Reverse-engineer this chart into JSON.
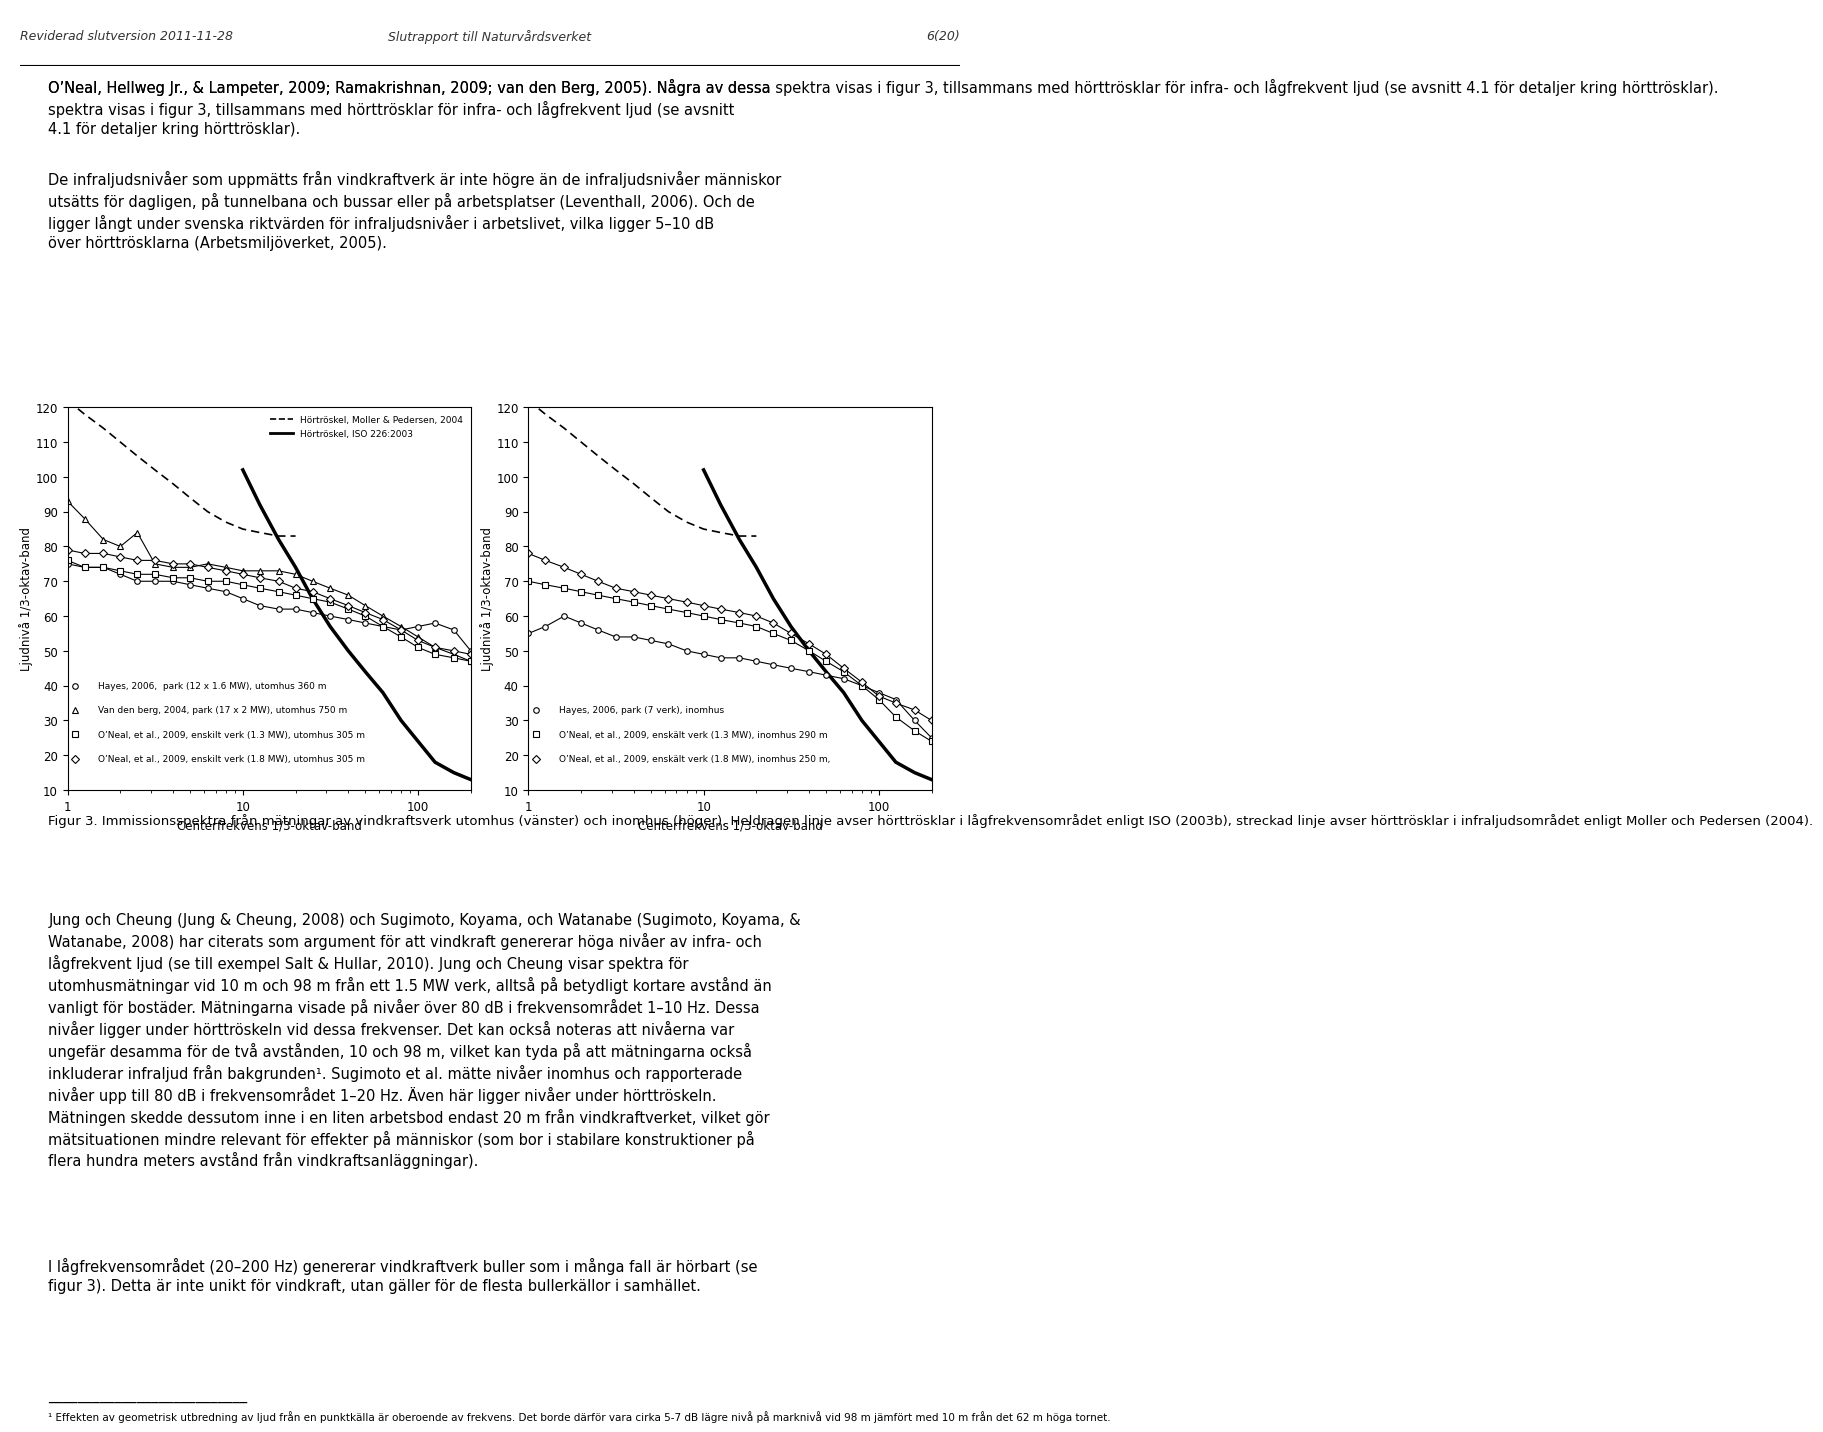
{
  "page_header_left": "Reviderad slutversion 2011-11-28",
  "page_header_center": "Slutrapport till Naturvårdsverket",
  "page_header_right": "6(20)",
  "para1": "O’Neal, Hellweg Jr., & Lampeter, 2009; Ramakrishnan, 2009; van den Berg, 2005). Några av dessa spektra visas i figur 3, tillsammans med hörttrösklar för infra- och lågfrekvent ljud (se avsnitt 4.1 för detaljer kring hörttrösklar).",
  "para2_bold": "De infraljudsnivåer som uppmätts från vindkraftverk är inte högre än de infraljudsnivåer människor utsätts för dagligen, på tunnelbana och bussar eller på arbetsplatser (Leventhall, 2006).",
  "para2_normal": "Och de ligger långt under svenska riktvärden för infraljudsnivåer i arbetslivet, vilka ligger 5–10 dB över hörttrösklarna (Arbetsmiljöverket, 2005).",
  "fig_caption": "Figur 3. Immissionsspektra från mätningar av vindkraftsverk utomhus (vänster) och inomhus (höger). Heldragen linje avser hörttrösklar i lågfrekvensområdet enligt ISO (2003b), streckad linje avser hörttrösklar i infraljudsområdet enligt Moller och Pedersen (2004).",
  "para3": "Jung och Cheung (Jung & Cheung, 2008) och Sugimoto, Koyama, och Watanabe (Sugimoto, Koyama, & Watanabe, 2008) har citerats som argument för att vindkraft genererar höga nivåer av infra- och lågfrekvent ljud (se till exempel Salt & Hullar, 2010). Jung och Cheung visar spektra för utomhusmätningar vid 10 m och 98 m från ett 1.5 MW verk, alltså på betydligt kortare avstånd än vanligt för bostäder. Mätningarna visade på nivåer över 80 dB i frekvensområdet 1–10 Hz. Dessa nivåer ligger under hörttröskeln vid dessa frekvenser. Det kan också noteras att nivåerna var ungefär desamma för de två avstånden, 10 och 98 m, vilket kan tyda på att mätningarna också inkluderar infraljud från bakgrunden",
  "footnote_ref": "1",
  "para3_cont": ". Sugimoto et al. mätte nivåer inomhus och rapporterade nivåer upp till 80 dB i frekvensområdet 1–20 Hz. Även här ligger nivåer under hörttröskeln. Mätningen skedde dessutom inne i en liten arbetsbod endast 20 m från vindkraftverket, vilket gör mätsituationen mindre relevant för effekter på människor (som bor i stabilare konstruktioner på flera hundra meters avstånd från vindkraftsanläggningar).",
  "para4": "I lågfrekvensområdet (20–200 Hz) genererar vindkraftverk buller som i många fall är hörbart (se figur 3). Detta är inte unikt för vindkraft, utan gäller för de flesta bullerkällor i samhället.",
  "footnote_line": "___________________________",
  "footnote_text": "¹ Effekten av geometrisk utbredning av ljud från en punktkälla är oberoende av frekvens. Det borde därför vara cirka 5-7 dB lägre nivå på marknivå vid 98 m jämfört med 10 m från det 62 m höga tornet.",
  "left_legend_dashed": "Hörtröskel, Moller & Pedersen, 2004",
  "left_legend_solid": "Hörtröskel, ISO 226:2003",
  "left_legend_circle": "Hayes, 2006,  park (12 x 1.6 MW), utomhus 360 m",
  "left_legend_triangle": "Van den berg, 2004, park (17 x 2 MW), utomhus 750 m",
  "left_legend_square": "O’Neal, et al., 2009, enskilt verk (1.3 MW), utomhus 305 m",
  "left_legend_diamond": "O’Neal, et al., 2009, enskilt verk (1.8 MW), utomhus 305 m",
  "right_legend_circle": "Hayes, 2006, park (7 verk), inomhus",
  "right_legend_square": "O’Neal, et al., 2009, enskält verk (1.3 MW), inomhus 290 m",
  "right_legend_diamond": "O’Neal, et al., 2009, enskält verk (1.8 MW), inomhus 250 m,",
  "xlabel": "Centerfrekvens 1/3-oktav-band",
  "ylabel": "Ljudnivå 1/3-oktav-band",
  "ylim": [
    10,
    120
  ],
  "yticks": [
    10,
    20,
    30,
    40,
    50,
    60,
    70,
    80,
    90,
    100,
    110,
    120
  ],
  "bg_color": "#ffffff",
  "text_color": "#000000",
  "font_size_body": 10.5,
  "font_size_header": 9,
  "font_size_axis": 8.5,
  "font_size_legend": 7.5,
  "font_size_caption": 9.5
}
